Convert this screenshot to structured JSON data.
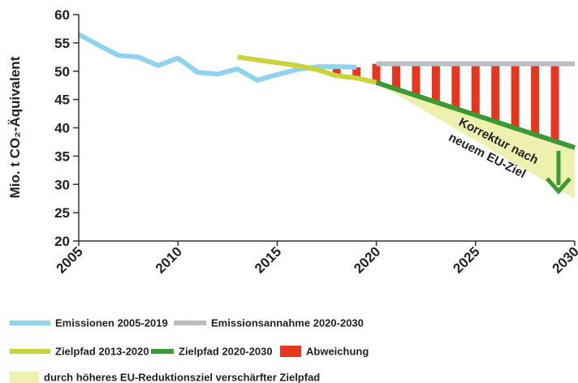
{
  "chart_data": {
    "type": "line",
    "ylabel": "Mio. t CO₂-Äquivalent",
    "xlim": [
      2005,
      2030
    ],
    "xticks": [
      2005,
      2010,
      2015,
      2020,
      2025,
      2030
    ],
    "ylim": [
      20,
      60
    ],
    "yticks": [
      20,
      25,
      30,
      35,
      40,
      45,
      50,
      55,
      60
    ],
    "series": [
      {
        "name": "Emissionen 2005-2019",
        "color": "#8fd3ee",
        "kind": "line",
        "x": [
          2005,
          2006,
          2007,
          2008,
          2009,
          2010,
          2011,
          2012,
          2013,
          2014,
          2015,
          2016,
          2017,
          2018,
          2019
        ],
        "values": [
          56.5,
          54.6,
          52.8,
          52.5,
          51,
          52.3,
          49.8,
          49.5,
          50.4,
          48.4,
          49.4,
          50.3,
          50.8,
          50.8,
          50.7
        ]
      },
      {
        "name": "Emissionsannahme 2020-2030",
        "color": "#b8bec2",
        "kind": "line",
        "x": [
          2020,
          2030
        ],
        "values": [
          51.3,
          51.3
        ]
      },
      {
        "name": "Zielpfad 2013-2020",
        "color": "#c8d43a",
        "kind": "line",
        "x": [
          2013,
          2014,
          2015,
          2016,
          2017,
          2018,
          2019,
          2020
        ],
        "values": [
          52.5,
          52,
          51.5,
          51,
          50.3,
          49.2,
          48.8,
          48
        ]
      },
      {
        "name": "Zielpfad 2020-2030",
        "color": "#3c9a34",
        "kind": "line",
        "x": [
          2020,
          2021,
          2022,
          2023,
          2024,
          2025,
          2026,
          2027,
          2028,
          2029,
          2030
        ],
        "values": [
          48,
          46.85,
          45.7,
          44.55,
          43.4,
          42.25,
          41.1,
          39.95,
          38.8,
          37.65,
          36.5
        ]
      },
      {
        "name": "Abweichung",
        "color": "#e8361e",
        "kind": "bar",
        "x": [
          2017,
          2018,
          2019,
          2020,
          2021,
          2022,
          2023,
          2024,
          2025,
          2026,
          2027,
          2028,
          2029
        ],
        "values": [
          0.5,
          1.6,
          1.9,
          3.3,
          4.45,
          5.6,
          6.75,
          7.9,
          9.05,
          10.2,
          11.35,
          12.5,
          13.65
        ]
      },
      {
        "name": "durch höheres EU-Reduktionsziel verschärfter Zielpfad",
        "color": "#eef0b0",
        "kind": "area",
        "x": [
          2020,
          2030
        ],
        "values": [
          48,
          27.5
        ]
      }
    ],
    "annotation": [
      "Korrektur nach",
      "neuem EU-Ziel"
    ],
    "annotation_color": "#5aad32"
  }
}
